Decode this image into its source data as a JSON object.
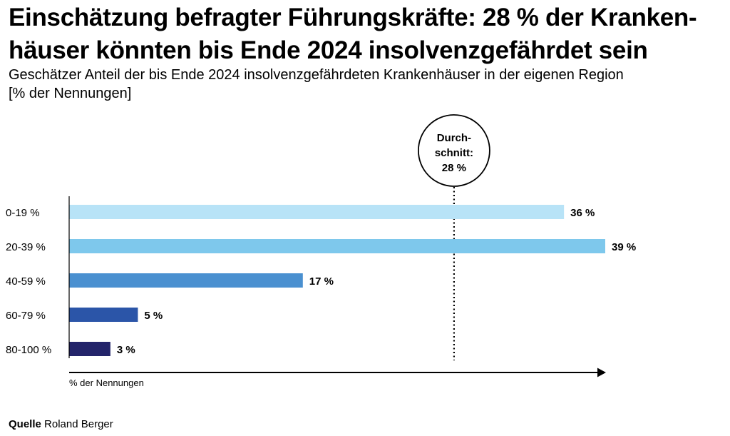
{
  "title": "Einschätzung befragter Führungskräfte: 28 % der Kranken-häuser könnten bis Ende 2024 insolvenzgefährdet sein",
  "title_line1": "Einschätzung befragter Führungskräfte: 28 % der Kranken-",
  "title_line2": "häuser könnten bis Ende 2024 insolvenzgefährdet sein",
  "subtitle_line1": "Geschätzer Anteil der bis Ende 2024 insolvenzgefährdeten Krankenhäuser in der eigenen Region",
  "subtitle_line2": "[% der Nennungen]",
  "source_label": "Quelle",
  "source_text": "Roland Berger",
  "chart_data": {
    "type": "bar",
    "orientation": "horizontal",
    "categories": [
      "0-19 %",
      "20-39 %",
      "40-59 %",
      "60-79 %",
      "80-100 %"
    ],
    "values": [
      36,
      39,
      17,
      5,
      3
    ],
    "value_labels": [
      "36 %",
      "39 %",
      "17 %",
      "5 %",
      "3 %"
    ],
    "colors": [
      "#b8e3f7",
      "#7ec8ec",
      "#4a90d0",
      "#2b55a8",
      "#23246a"
    ],
    "xlabel": "% der Nennungen",
    "xlim": [
      0,
      40
    ],
    "average": {
      "value": 28,
      "label_line1": "Durch-",
      "label_line2": "schnitt:",
      "label_line3": "28 %"
    }
  }
}
